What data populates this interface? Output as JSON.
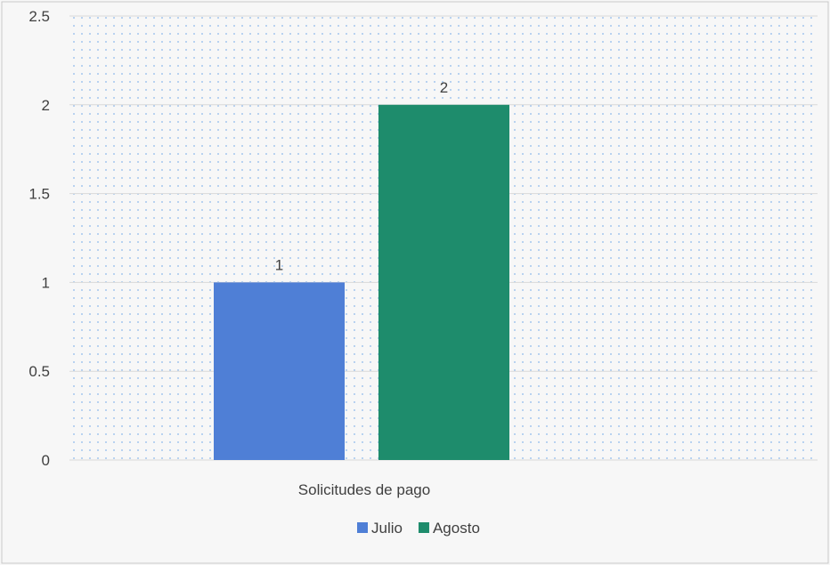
{
  "chart_data": {
    "type": "bar",
    "categories": [
      "Solicitudes de pago"
    ],
    "series": [
      {
        "name": "Julio",
        "values": [
          1
        ],
        "color": "#4f7fd6"
      },
      {
        "name": "Agosto",
        "values": [
          2
        ],
        "color": "#1e8c6c"
      }
    ],
    "data_labels": [
      "1",
      "2"
    ],
    "ylim": [
      0,
      2.5
    ],
    "yticks": [
      "0",
      "0.5",
      "1",
      "1.5",
      "2",
      "2.5"
    ],
    "ytick_values": [
      0,
      0.5,
      1,
      1.5,
      2,
      2.5
    ],
    "grid": true,
    "legend_position": "bottom",
    "plot_fill": "dotted",
    "dot_color": "#8ab8ea",
    "grid_color": "#d9d9d9"
  }
}
